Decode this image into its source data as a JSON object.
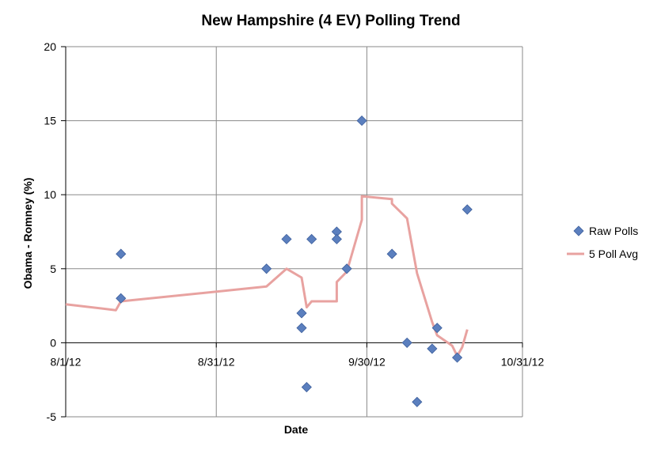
{
  "chart_data": {
    "type": "scatter",
    "title": "New Hampshire (4 EV) Polling Trend",
    "xlabel": "Date",
    "ylabel": "Obama - Romney (%)",
    "x_range": [
      "2012-08-01",
      "2012-10-31"
    ],
    "ylim": [
      -5,
      20
    ],
    "y_ticks": [
      -5,
      0,
      5,
      10,
      15,
      20
    ],
    "x_ticks": [
      {
        "date": "2012-08-01",
        "label": "8/1/12"
      },
      {
        "date": "2012-08-31",
        "label": "8/31/12"
      },
      {
        "date": "2012-09-30",
        "label": "9/30/12"
      },
      {
        "date": "2012-10-31",
        "label": "10/31/12"
      }
    ],
    "grid": "vertical and horizontal major gridlines",
    "legend_position": "right",
    "series": [
      {
        "name": "Raw Polls",
        "kind": "scatter",
        "marker": "diamond",
        "color": "#5b7fbe",
        "points": [
          {
            "x": "2012-08-12",
            "y": 6
          },
          {
            "x": "2012-08-12",
            "y": 3
          },
          {
            "x": "2012-09-10",
            "y": 5
          },
          {
            "x": "2012-09-14",
            "y": 7
          },
          {
            "x": "2012-09-17",
            "y": 2
          },
          {
            "x": "2012-09-17",
            "y": 1
          },
          {
            "x": "2012-09-18",
            "y": -3
          },
          {
            "x": "2012-09-19",
            "y": 7
          },
          {
            "x": "2012-09-24",
            "y": 7.5
          },
          {
            "x": "2012-09-24",
            "y": 7
          },
          {
            "x": "2012-09-26",
            "y": 5
          },
          {
            "x": "2012-09-29",
            "y": 15
          },
          {
            "x": "2012-10-05",
            "y": 6
          },
          {
            "x": "2012-10-08",
            "y": 0
          },
          {
            "x": "2012-10-10",
            "y": -4
          },
          {
            "x": "2012-10-13",
            "y": -0.4
          },
          {
            "x": "2012-10-14",
            "y": 1
          },
          {
            "x": "2012-10-18",
            "y": -1
          },
          {
            "x": "2012-10-20",
            "y": 9
          }
        ]
      },
      {
        "name": "5 Poll Avg",
        "kind": "line",
        "color": "#e8a2a0",
        "points": [
          {
            "x": "2012-08-01",
            "y": 2.6
          },
          {
            "x": "2012-08-11",
            "y": 2.2
          },
          {
            "x": "2012-08-12",
            "y": 2.8
          },
          {
            "x": "2012-09-10",
            "y": 3.8
          },
          {
            "x": "2012-09-14",
            "y": 5
          },
          {
            "x": "2012-09-17",
            "y": 4.4
          },
          {
            "x": "2012-09-18",
            "y": 2.4
          },
          {
            "x": "2012-09-19",
            "y": 2.8
          },
          {
            "x": "2012-09-24",
            "y": 2.8
          },
          {
            "x": "2012-09-24",
            "y": 4.1
          },
          {
            "x": "2012-09-26",
            "y": 4.8
          },
          {
            "x": "2012-09-29",
            "y": 8.3
          },
          {
            "x": "2012-09-29",
            "y": 9.9
          },
          {
            "x": "2012-10-05",
            "y": 9.7
          },
          {
            "x": "2012-10-05",
            "y": 9.4
          },
          {
            "x": "2012-10-08",
            "y": 8.4
          },
          {
            "x": "2012-10-10",
            "y": 4.7
          },
          {
            "x": "2012-10-13",
            "y": 1.4
          },
          {
            "x": "2012-10-14",
            "y": 0.5
          },
          {
            "x": "2012-10-17",
            "y": -0.2
          },
          {
            "x": "2012-10-18",
            "y": -0.9
          },
          {
            "x": "2012-10-19",
            "y": -0.3
          },
          {
            "x": "2012-10-20",
            "y": 0.9
          }
        ]
      }
    ]
  }
}
